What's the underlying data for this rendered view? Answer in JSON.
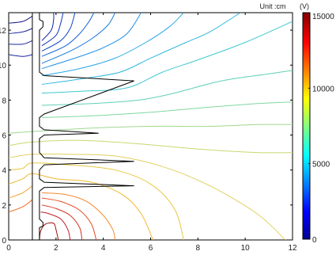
{
  "chart_data": {
    "type": "contour",
    "unit_label": "Unit :cm",
    "colorbar_unit": "(V)",
    "xlim": [
      0,
      12
    ],
    "ylim": [
      0,
      13
    ],
    "x_ticks": [
      0,
      2,
      4,
      6,
      8,
      10,
      12
    ],
    "y_ticks": [
      0,
      2,
      4,
      6,
      8,
      10,
      12
    ],
    "x_tick_labels": [
      "0",
      "2",
      "4",
      "6",
      "8",
      "10",
      "12"
    ],
    "y_tick_labels": [
      "0",
      "2",
      "4",
      "6",
      "8",
      "10",
      "12"
    ],
    "colorbar": {
      "min": 0,
      "max": 15000,
      "ticks": [
        0,
        5000,
        10000,
        15000
      ],
      "tick_labels": [
        "0",
        "5000",
        "10000",
        "15000"
      ]
    },
    "contour_levels": [
      {
        "value": 14000,
        "color": "#a01010",
        "points": [
          [
            1.3,
            0
          ],
          [
            1.35,
            0.5
          ],
          [
            1.55,
            0.9
          ],
          [
            1.9,
            0.95
          ],
          [
            2.0,
            0.6
          ],
          [
            2.1,
            0
          ]
        ]
      },
      {
        "value": 13000,
        "color": "#c0202a",
        "points": [
          [
            1.35,
            1.6
          ],
          [
            1.7,
            1.5
          ],
          [
            2.2,
            1.2
          ],
          [
            2.5,
            0.6
          ],
          [
            2.6,
            0
          ]
        ]
      },
      {
        "value": 12000,
        "color": "#d83020",
        "points": [
          [
            1.4,
            2.0
          ],
          [
            2.0,
            1.8
          ],
          [
            2.6,
            1.4
          ],
          [
            3.0,
            0.7
          ],
          [
            3.1,
            0
          ]
        ]
      },
      {
        "value": 11000,
        "color": "#e84a20",
        "points": [
          [
            1.4,
            2.4
          ],
          [
            2.2,
            2.2
          ],
          [
            3.0,
            1.7
          ],
          [
            3.5,
            0.9
          ],
          [
            3.7,
            0
          ]
        ]
      },
      {
        "value": 10000,
        "color": "#f06a20",
        "points": [
          [
            0,
            1.6
          ],
          [
            0.6,
            1.9
          ],
          [
            1.0,
            2.3
          ]
        ]
      },
      {
        "value": 9500,
        "color": "#f58a30",
        "points": [
          [
            1.4,
            2.7
          ],
          [
            2.4,
            2.6
          ],
          [
            3.3,
            2.2
          ],
          [
            4.0,
            1.4
          ],
          [
            4.4,
            0.6
          ],
          [
            4.5,
            0
          ]
        ]
      },
      {
        "value": 9000,
        "color": "#f2a030",
        "points": [
          [
            0,
            2.4
          ],
          [
            0.6,
            2.7
          ],
          [
            1.0,
            3.1
          ]
        ]
      },
      {
        "value": 8500,
        "color": "#f0b830",
        "points": [
          [
            0,
            3.2
          ],
          [
            0.6,
            3.5
          ],
          [
            1.0,
            3.8
          ],
          [
            2.0,
            3.5
          ],
          [
            3.5,
            3.3
          ],
          [
            4.8,
            2.6
          ],
          [
            5.6,
            1.5
          ],
          [
            6.1,
            0
          ]
        ]
      },
      {
        "value": 8000,
        "color": "#e8c840",
        "points": [
          [
            0,
            4.0
          ],
          [
            0.6,
            4.1
          ],
          [
            1.0,
            4.4
          ],
          [
            2.5,
            4.3
          ],
          [
            4.5,
            4.0
          ],
          [
            6.0,
            3.2
          ],
          [
            7.0,
            1.8
          ],
          [
            7.4,
            0
          ]
        ]
      },
      {
        "value": 7500,
        "color": "#e0d060",
        "points": [
          [
            0,
            4.7
          ],
          [
            1.0,
            4.9
          ],
          [
            2.5,
            4.9
          ],
          [
            4.5,
            4.8
          ],
          [
            6.5,
            4.2
          ],
          [
            8.5,
            3.1
          ],
          [
            10.5,
            1.5
          ],
          [
            11.7,
            0
          ]
        ]
      },
      {
        "value": 7000,
        "color": "#c8d870",
        "points": [
          [
            0,
            5.4
          ],
          [
            1.0,
            5.6
          ],
          [
            3.0,
            5.7
          ],
          [
            5.5,
            5.5
          ],
          [
            8.0,
            5.2
          ],
          [
            10.5,
            5.0
          ],
          [
            12,
            5.0
          ]
        ]
      },
      {
        "value": 6500,
        "color": "#a0d890",
        "points": [
          [
            0,
            6.1
          ],
          [
            1.0,
            6.2
          ],
          [
            3.5,
            6.4
          ],
          [
            6.0,
            6.5
          ],
          [
            8.5,
            6.5
          ],
          [
            10.5,
            6.6
          ],
          [
            12,
            6.6
          ]
        ]
      },
      {
        "value": 6000,
        "color": "#80d8a0",
        "points": [
          [
            1.4,
            7.0
          ],
          [
            3.5,
            7.1
          ],
          [
            6.0,
            7.3
          ],
          [
            8.5,
            7.6
          ],
          [
            10.5,
            7.8
          ],
          [
            12,
            7.9
          ]
        ]
      },
      {
        "value": 5500,
        "color": "#60d0b8",
        "points": [
          [
            1.4,
            7.7
          ],
          [
            3.5,
            7.8
          ],
          [
            5.5,
            8.0
          ],
          [
            7.0,
            8.4
          ],
          [
            9.0,
            9.1
          ],
          [
            11.0,
            9.5
          ],
          [
            12,
            9.7
          ]
        ]
      },
      {
        "value": 5000,
        "color": "#40c8d0",
        "points": [
          [
            1.4,
            8.4
          ],
          [
            3.0,
            8.5
          ],
          [
            5.0,
            8.7
          ],
          [
            6.5,
            9.6
          ],
          [
            8.0,
            10.3
          ],
          [
            10.0,
            11.3
          ],
          [
            12,
            12.5
          ]
        ]
      },
      {
        "value": 4500,
        "color": "#30b8e0",
        "points": [
          [
            1.4,
            8.9
          ],
          [
            3.0,
            9.2
          ],
          [
            4.7,
            9.6
          ],
          [
            6.0,
            10.4
          ],
          [
            7.5,
            11.3
          ],
          [
            8.5,
            11.9
          ],
          [
            9.8,
            13
          ]
        ]
      },
      {
        "value": 4000,
        "color": "#2aa8e8",
        "points": [
          [
            1.4,
            9.4
          ],
          [
            3.0,
            9.8
          ],
          [
            4.5,
            10.4
          ],
          [
            5.8,
            11.3
          ],
          [
            6.8,
            12.2
          ],
          [
            7.4,
            13
          ]
        ]
      },
      {
        "value": 3500,
        "color": "#2090e8",
        "points": [
          [
            1.4,
            9.8
          ],
          [
            2.8,
            10.4
          ],
          [
            4.0,
            11.0
          ],
          [
            5.0,
            11.8
          ],
          [
            5.6,
            13
          ]
        ]
      },
      {
        "value": 3000,
        "color": "#1878e0",
        "points": [
          [
            1.4,
            10.1
          ],
          [
            2.6,
            10.8
          ],
          [
            3.5,
            11.5
          ],
          [
            4.2,
            12.3
          ],
          [
            4.5,
            13
          ]
        ]
      },
      {
        "value": 2500,
        "color": "#1060d8",
        "points": [
          [
            1.4,
            10.5
          ],
          [
            2.4,
            11.1
          ],
          [
            3.0,
            11.8
          ],
          [
            3.4,
            12.5
          ],
          [
            3.6,
            13
          ]
        ]
      },
      {
        "value": 2000,
        "color": "#1048c8",
        "points": [
          [
            1.4,
            10.8
          ],
          [
            2.2,
            11.4
          ],
          [
            2.6,
            12.1
          ],
          [
            2.8,
            13
          ]
        ]
      },
      {
        "value": 1500,
        "color": "#1038b8",
        "points": [
          [
            1.4,
            11.1
          ],
          [
            2.0,
            11.7
          ],
          [
            2.2,
            12.4
          ],
          [
            2.3,
            13
          ]
        ]
      },
      {
        "value": 1000,
        "color": "#1028a8",
        "points": [
          [
            1.4,
            11.4
          ],
          [
            1.8,
            12.0
          ],
          [
            1.9,
            12.6
          ],
          [
            1.9,
            13
          ]
        ]
      },
      {
        "value": 800,
        "color": "#1a2aa0",
        "points": [
          [
            0,
            10.6
          ],
          [
            0.6,
            10.5
          ],
          [
            1.0,
            10.6
          ]
        ]
      },
      {
        "value": 600,
        "color": "#1f2a98",
        "points": [
          [
            0,
            11.2
          ],
          [
            0.6,
            11.2
          ],
          [
            1.0,
            11.4
          ]
        ]
      },
      {
        "value": 400,
        "color": "#22289a",
        "points": [
          [
            0,
            11.8
          ],
          [
            0.6,
            11.9
          ],
          [
            1.0,
            12.1
          ]
        ]
      },
      {
        "value": 200,
        "color": "#201e90",
        "points": [
          [
            0,
            12.4
          ],
          [
            0.6,
            12.5
          ],
          [
            1.0,
            12.8
          ]
        ]
      }
    ],
    "structure": {
      "color": "#000000",
      "boundary_x": 1.0,
      "outline": [
        [
          1.3,
          0
        ],
        [
          1.3,
          0.7
        ],
        [
          1.45,
          0.8
        ],
        [
          1.45,
          1.0
        ],
        [
          1.3,
          1.2
        ],
        [
          1.3,
          2.8
        ],
        [
          1.5,
          3.0
        ],
        [
          5.3,
          3.1
        ],
        [
          1.5,
          3.3
        ],
        [
          1.3,
          3.5
        ],
        [
          1.3,
          4.0
        ],
        [
          1.5,
          4.3
        ],
        [
          5.3,
          4.5
        ],
        [
          1.5,
          4.7
        ],
        [
          1.3,
          5.0
        ],
        [
          1.3,
          5.8
        ],
        [
          1.5,
          6.0
        ],
        [
          3.8,
          6.1
        ],
        [
          1.5,
          6.3
        ],
        [
          1.3,
          6.5
        ],
        [
          1.3,
          7.0
        ],
        [
          1.5,
          7.2
        ],
        [
          5.3,
          9.1
        ],
        [
          1.5,
          9.4
        ],
        [
          1.3,
          9.6
        ],
        [
          1.3,
          12.0
        ],
        [
          1.45,
          12.2
        ],
        [
          1.45,
          12.5
        ],
        [
          1.3,
          12.6
        ],
        [
          1.3,
          13
        ]
      ]
    }
  }
}
